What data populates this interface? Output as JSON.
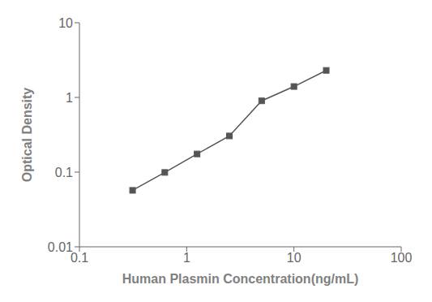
{
  "chart_data": {
    "type": "line",
    "x": [
      0.313,
      0.625,
      1.25,
      2.5,
      5.0,
      10.0,
      20.0
    ],
    "values": [
      0.057,
      0.099,
      0.175,
      0.305,
      0.9,
      1.4,
      2.3
    ],
    "xlabel": "Human Plasmin Concentration(ng/mL)",
    "ylabel": "Optical Density",
    "xlim": [
      0.1,
      100
    ],
    "ylim": [
      0.01,
      10
    ],
    "xticks": [
      0.1,
      1,
      10,
      100
    ],
    "yticks": [
      0.01,
      0.1,
      1,
      10
    ],
    "log": true,
    "grid": false,
    "color": "#555555",
    "marker": "square"
  }
}
